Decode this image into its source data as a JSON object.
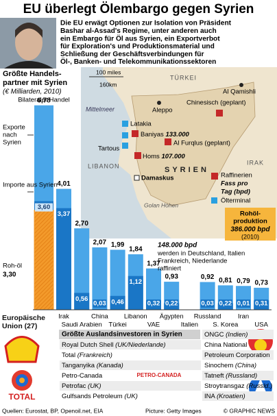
{
  "header": {
    "title": "EU überlegt Ölembargo gegen Syrien",
    "text": [
      "Die EU erwägt Optionen zur Isolation von Präsident",
      "Bashar al-Assad's Regime, unter anderen auch",
      "ein Embargo für Öl aus Syrien, ein Exportverbot",
      "für Exploration's und Produktionsmaterial und",
      "Schließung der Geschäftsverbindungen für",
      "Öl-, Banken- und Telekommunikationssektoren"
    ]
  },
  "chart_data": {
    "type": "bar",
    "title": [
      "Größte Handels-",
      "partner mit Syrien"
    ],
    "subtitle": "(€ Milliarden, 2010)",
    "annotation": [
      "Exporte",
      "nach",
      "Syrien"
    ],
    "categories": [
      "Europäische Union (27)",
      "Irak",
      "Saudi Arabien",
      "China",
      "Türkei",
      "Libanon",
      "VAE",
      "Ägypten",
      "Italien",
      "Russland",
      "S. Korea",
      "Iran",
      "USA"
    ],
    "series": [
      {
        "name": "Bilateraler Handel",
        "color": "#4aa6e8",
        "values": [
          6.78,
          4.01,
          2.7,
          2.07,
          1.99,
          1.84,
          1.37,
          0.93,
          null,
          0.92,
          0.81,
          0.79,
          0.73
        ],
        "value_labels": [
          "6,78",
          "4,01",
          "2,70",
          "2,07",
          "1,99",
          "1,84",
          "1,37",
          "0,93",
          null,
          "0,92",
          "0,81",
          "0,79",
          "0,73"
        ]
      },
      {
        "name": "Importe aus Syrien",
        "color": "#1a76c6",
        "values": [
          3.6,
          3.37,
          0.56,
          0.03,
          0.46,
          1.12,
          0.32,
          0.22,
          null,
          0.03,
          0.22,
          0.01,
          0.31
        ],
        "value_labels": [
          "3,60",
          "3,37",
          "0,56",
          "0,03",
          "0,46",
          "1,12",
          "0,32",
          "0,22",
          null,
          "0,03",
          "0,22",
          "0,01",
          "0,31"
        ]
      },
      {
        "name": "Roh-öl",
        "color": "#f39a2b",
        "values": [
          3.3,
          null,
          null,
          null,
          null,
          null,
          null,
          null,
          null,
          null,
          null,
          null,
          null
        ],
        "value_labels": [
          "3,30",
          null,
          null,
          null,
          null,
          null,
          null,
          null,
          null,
          null,
          null,
          null,
          null
        ]
      }
    ]
  },
  "map": {
    "sea": "Mittelmeer",
    "countries": [
      "TÜRKEI",
      "IRAK",
      "LIBANON",
      "SYRIEN"
    ],
    "cities": [
      "Aleppo",
      "Al Qamishli",
      "Latakia",
      "Tartous",
      "Damaskus"
    ],
    "golan": "Golan Höhen",
    "scale": [
      "100 miles",
      "160km"
    ],
    "refineries": [
      {
        "name": "Baniyas",
        "bpd": "133.000"
      },
      {
        "name": "Homs",
        "bpd": "107.000"
      },
      {
        "name": "Al Furqlus (geplant)"
      },
      {
        "name": "Chinesisch (geplant)"
      }
    ],
    "legend": {
      "refinery": "Raffinerien",
      "unit": [
        "Fass pro",
        "Tag (bpd)"
      ],
      "terminal": "Ölterminal"
    },
    "production": {
      "label": [
        "Rohöl-",
        "produktion"
      ],
      "value": "386.000 bpd",
      "year": "(2010)"
    },
    "refined": {
      "value": "148.000 bpd",
      "text": [
        "werden in Deutschland, Italien",
        "Frankreich, Niederlande",
        "raffiniert"
      ]
    }
  },
  "investors": {
    "title": "Größte Auslandsinvestoren in Syrien",
    "left": [
      {
        "name": "Royal Dutch Shell",
        "country": "(UK/Niederlande)"
      },
      {
        "name": "Total",
        "country": "(Frankreich)"
      },
      {
        "name": "Tanganyika",
        "country": "(Kanada)"
      },
      {
        "name": "Petro-Canada"
      },
      {
        "name": "Petrofac",
        "country": "(UK)"
      },
      {
        "name": "Gulfsands Petroleum",
        "country": "(UK)"
      }
    ],
    "right": [
      {
        "name": "ONGC",
        "country": "(Indien)"
      },
      {
        "name": "China National"
      },
      {
        "name": "Petroleum Corporation"
      },
      {
        "name": "Sinochem",
        "country": "(China)"
      },
      {
        "name": "Tatneft",
        "country": "(Russland)"
      },
      {
        "name": "Stroytransgaz",
        "country": "(Russld.)"
      },
      {
        "name": "INA",
        "country": "(Kroatien)"
      }
    ],
    "logos": [
      "TOTAL",
      "PETRO-CANADA"
    ]
  },
  "footer": {
    "sources": "Quellen: Eurostat, BP, Openoil.net, EIA",
    "picture": "Picture: Getty Images",
    "credit": "© GRAPHIC NEWS"
  }
}
